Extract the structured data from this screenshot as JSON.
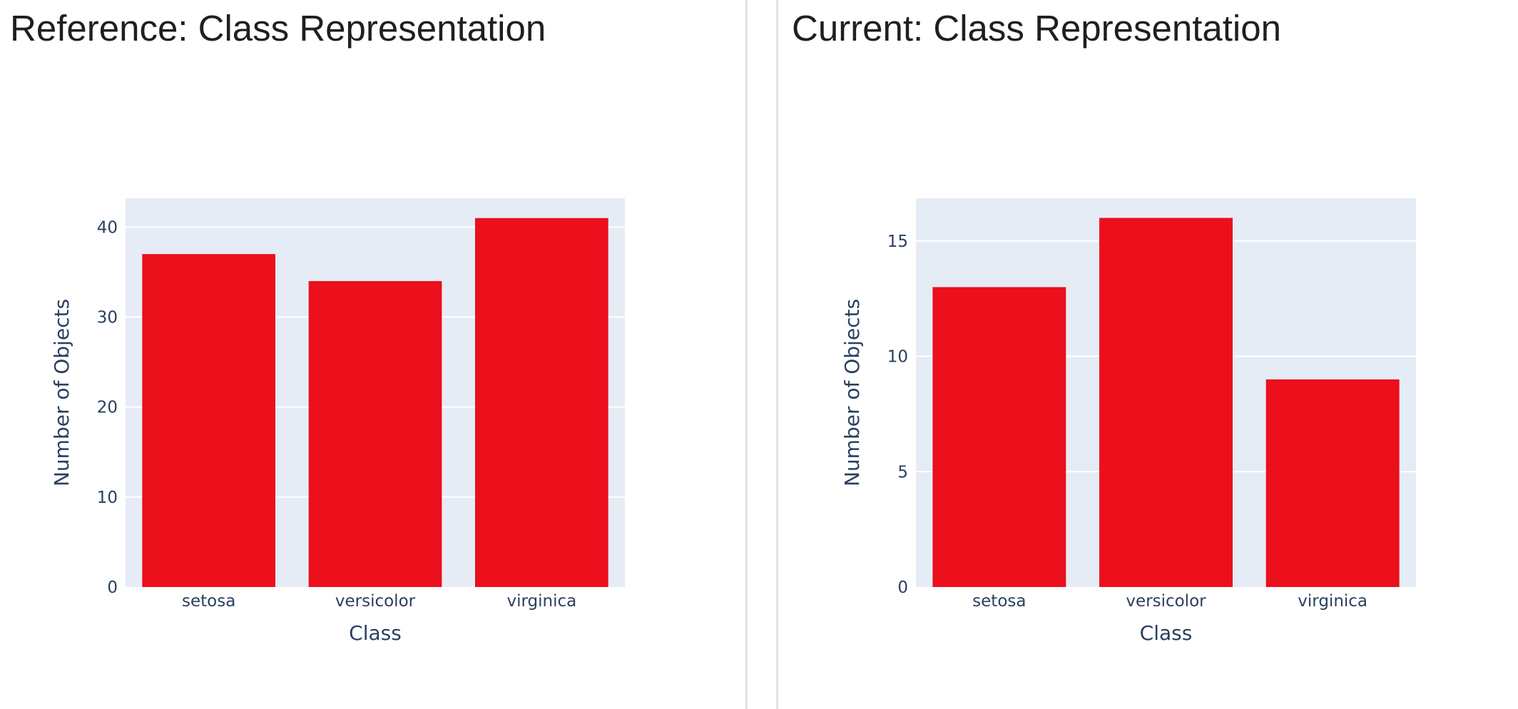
{
  "panels": [
    {
      "title": "Reference: Class Representation"
    },
    {
      "title": "Current: Class Representation"
    }
  ],
  "colors": {
    "bar": "#ec0f1c",
    "plot_background": "#e5ecf6",
    "gridline": "#ffffff",
    "axis_text": "#2a3f5f"
  },
  "chart_data": [
    {
      "type": "bar",
      "title": "Reference: Class Representation",
      "categories": [
        "setosa",
        "versicolor",
        "virginica"
      ],
      "values": [
        37,
        34,
        41
      ],
      "xlabel": "Class",
      "ylabel": "Number of Objects",
      "ylim": [
        0,
        43.2
      ],
      "yticks": [
        0,
        10,
        20,
        30,
        40
      ],
      "grid": true
    },
    {
      "type": "bar",
      "title": "Current: Class Representation",
      "categories": [
        "setosa",
        "versicolor",
        "virginica"
      ],
      "values": [
        13,
        16,
        9
      ],
      "xlabel": "Class",
      "ylabel": "Number of Objects",
      "ylim": [
        0,
        16.85
      ],
      "yticks": [
        0,
        5,
        10,
        15
      ],
      "grid": true
    }
  ]
}
